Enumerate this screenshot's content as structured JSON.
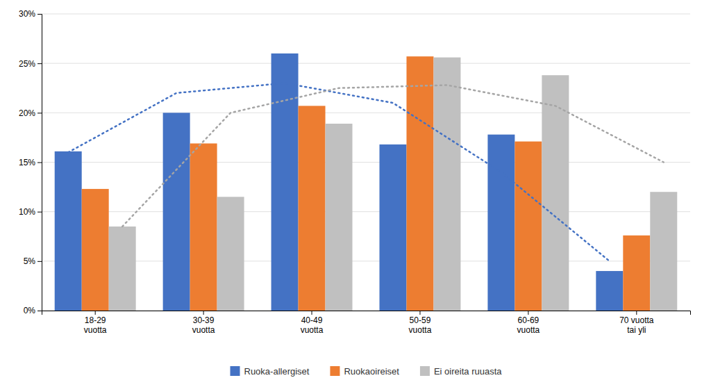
{
  "chart_data": {
    "type": "bar",
    "categories": [
      "18-29\nvuotta",
      "30-39\nvuotta",
      "40-49\nvuotta",
      "50-59\nvuotta",
      "60-69\nvuotta",
      "70 vuotta\ntai yli"
    ],
    "series": [
      {
        "name": "Ruoka-allergiset",
        "color": "#4472C4",
        "values": [
          0.161,
          0.2,
          0.26,
          0.168,
          0.178,
          0.04
        ]
      },
      {
        "name": "Ruokaoireiset",
        "color": "#ED7D31",
        "values": [
          0.123,
          0.169,
          0.207,
          0.257,
          0.171,
          0.076
        ]
      },
      {
        "name": "Ei oireita ruuasta",
        "color": "#C0C0C0",
        "values": [
          0.085,
          0.115,
          0.189,
          0.256,
          0.238,
          0.12
        ]
      },
      {
        "type": "line",
        "color": "#4472C4",
        "line_style": "dotted",
        "values": [
          0.16,
          0.22,
          0.23,
          0.21,
          0.14,
          0.05
        ]
      },
      {
        "type": "line",
        "color": "#A5A5A5",
        "line_style": "dotted",
        "values": [
          0.085,
          0.2,
          0.225,
          0.228,
          0.207,
          0.15
        ]
      }
    ],
    "ylim": [
      0.0,
      0.3
    ],
    "yticks": [
      {
        "value": 0.0,
        "label": "0%"
      },
      {
        "value": 0.05,
        "label": "5%"
      },
      {
        "value": 0.1,
        "label": "10%"
      },
      {
        "value": 0.15,
        "label": "15%"
      },
      {
        "value": 0.2,
        "label": "20%"
      },
      {
        "value": 0.25,
        "label": "25%"
      },
      {
        "value": 0.3,
        "label": "30%"
      }
    ],
    "grid": true,
    "legend": "bottom"
  }
}
